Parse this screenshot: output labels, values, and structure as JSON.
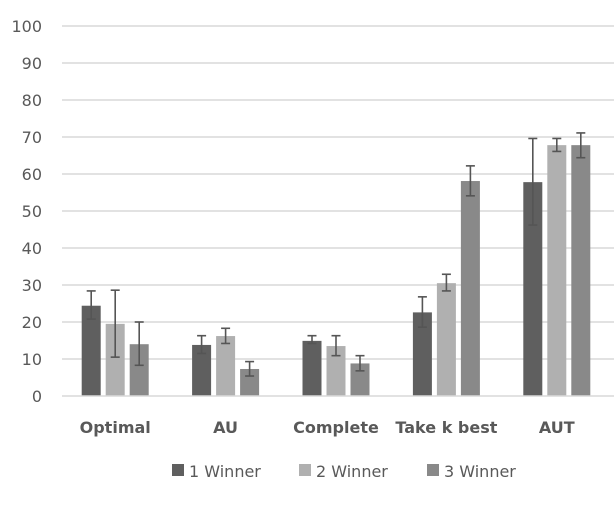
{
  "chart_data": {
    "type": "bar",
    "title": "",
    "xlabel": "",
    "ylabel": "",
    "ylim": [
      0,
      100
    ],
    "yticks": [
      0,
      10,
      20,
      30,
      40,
      50,
      60,
      70,
      80,
      90,
      100
    ],
    "grid": true,
    "legend_position": "bottom",
    "categories": [
      "Optimal",
      "AU",
      "Complete",
      "Take k best",
      "AUT"
    ],
    "series": [
      {
        "name": "1 Winner",
        "color": "#5f5f5f",
        "values": [
          24.4,
          13.8,
          14.9,
          22.6,
          57.8
        ],
        "error_low": [
          20.8,
          11.5,
          14.2,
          18.6,
          46.2
        ],
        "error_high": [
          28.4,
          16.3,
          16.3,
          26.8,
          69.6
        ]
      },
      {
        "name": "2 Winner",
        "color": "#b0b0b0",
        "values": [
          19.5,
          16.2,
          13.5,
          30.5,
          67.8
        ],
        "error_low": [
          10.5,
          14.2,
          10.9,
          28.4,
          66.1
        ],
        "error_high": [
          28.6,
          18.3,
          16.3,
          32.9,
          69.6
        ]
      },
      {
        "name": "3 Winner",
        "color": "#898989",
        "values": [
          14.0,
          7.3,
          8.8,
          58.1,
          67.8
        ],
        "error_low": [
          8.3,
          5.4,
          6.8,
          54.1,
          64.4
        ],
        "error_high": [
          20.0,
          9.3,
          10.9,
          62.2,
          71.1
        ]
      }
    ]
  }
}
